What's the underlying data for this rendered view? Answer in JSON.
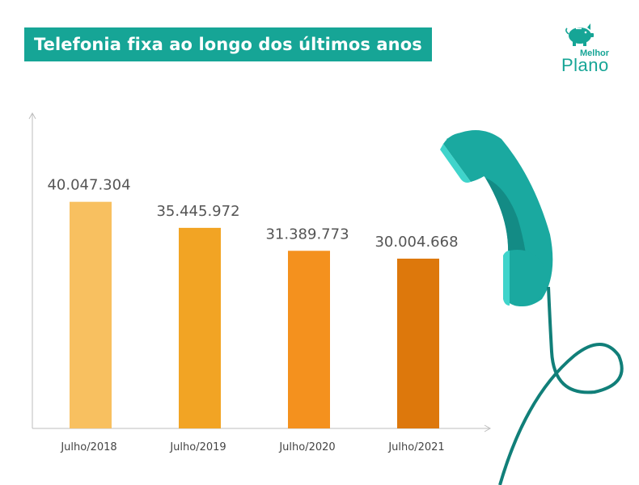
{
  "title": "Telefonia fixa ao longo dos últimos anos",
  "logo": {
    "top_text": "Melhor",
    "bottom_text": "Plano",
    "icon": "piggy-bank-icon"
  },
  "illustration": "telephone-handset-icon",
  "colors": {
    "banner": "#16a596",
    "brand": "#16a596",
    "phone": "#1aa9a0"
  },
  "chart_data": {
    "type": "bar",
    "categories": [
      "Julho/2018",
      "Julho/2019",
      "Julho/2020",
      "Julho/2021"
    ],
    "values": [
      40047304,
      35445972,
      31389773,
      30004668
    ],
    "value_labels": [
      "40.047.304",
      "35.445.972",
      "31.389.773",
      "30.004.668"
    ],
    "bar_colors": [
      "#f8c060",
      "#f2a424",
      "#f4911e",
      "#dd780c"
    ],
    "title": "Telefonia fixa ao longo dos últimos anos",
    "xlabel": "",
    "ylabel": "",
    "ylim": [
      0,
      55000000
    ],
    "grid": false,
    "legend": "none"
  }
}
